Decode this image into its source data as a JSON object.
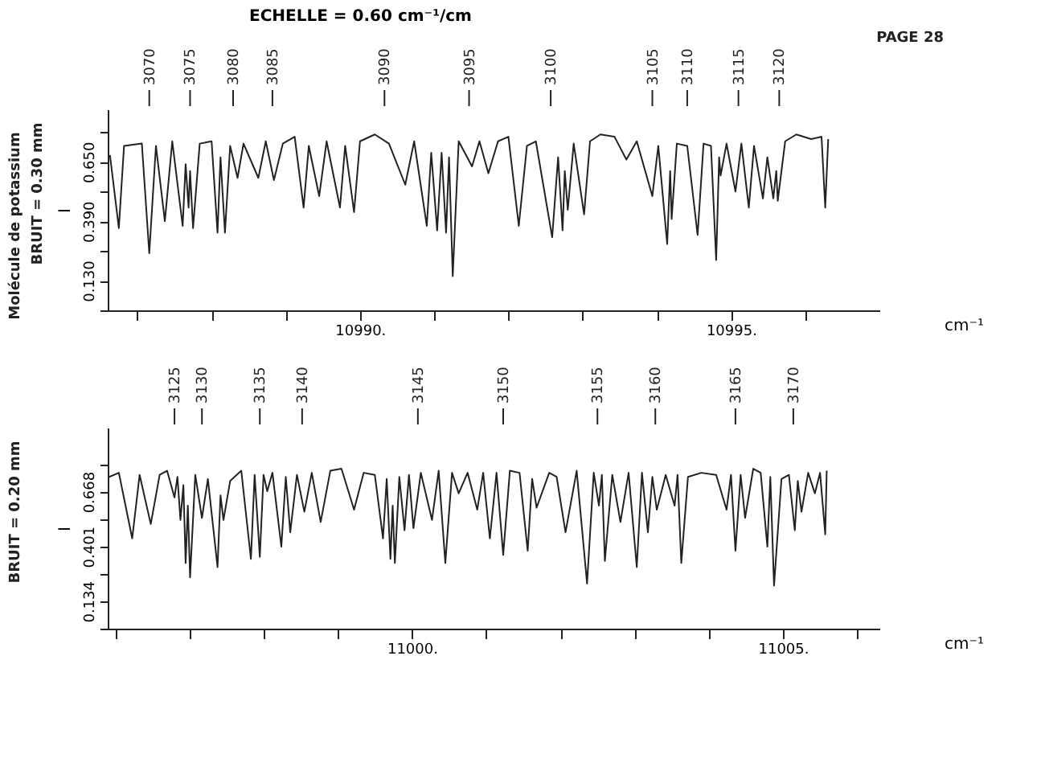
{
  "chart_data": [
    {
      "type": "line",
      "title": "ECHELLE = 0.60 cm⁻¹/cm",
      "annotations": [
        "PAGE 28",
        "Molécule de potassium",
        "BRUIT = 0.30 mm",
        {
          "text": "3070",
          "x": 10987.16
        },
        {
          "text": "3075",
          "x": 10987.71
        },
        {
          "text": "3080",
          "x": 10988.29
        },
        {
          "text": "3085",
          "x": 10988.82
        },
        {
          "text": "3090",
          "x": 10990.33
        },
        {
          "text": "3095",
          "x": 10991.47
        },
        {
          "text": "3100",
          "x": 10992.57
        },
        {
          "text": "3105",
          "x": 10993.94
        },
        {
          "text": "3110",
          "x": 10994.41
        },
        {
          "text": "3115",
          "x": 10995.1
        },
        {
          "text": "3120",
          "x": 10995.65
        }
      ],
      "xlabel": "cm⁻¹",
      "ylabel": "I",
      "marker": "none",
      "line_style": "solid",
      "xlim": [
        10986.6,
        10997.0
      ],
      "xticks": [
        {
          "value": 10987,
          "label": null
        },
        {
          "value": 10988,
          "label": null
        },
        {
          "value": 10989,
          "label": null
        },
        {
          "value": 10990,
          "label": "10990."
        },
        {
          "value": 10991,
          "label": null
        },
        {
          "value": 10992,
          "label": null
        },
        {
          "value": 10993,
          "label": null
        },
        {
          "value": 10994,
          "label": null
        },
        {
          "value": 10995,
          "label": "10995."
        },
        {
          "value": 10996,
          "label": null
        }
      ],
      "ylim": [
        0,
        0.88
      ],
      "yticks": [
        {
          "value": 0,
          "label": null
        },
        {
          "value": 0.13,
          "label": "0.130"
        },
        {
          "value": 0.26,
          "label": null
        },
        {
          "value": 0.39,
          "label": "0.390"
        },
        {
          "value": 0.52,
          "label": null
        },
        {
          "value": 0.65,
          "label": "0.650"
        },
        {
          "value": 0.78,
          "label": null
        }
      ],
      "series": [
        {
          "color": "#222222",
          "x": [
            10986.63,
            10986.75,
            10986.82,
            10987.06,
            10987.16,
            10987.25,
            10987.37,
            10987.47,
            10987.61,
            10987.65,
            10987.69,
            10987.71,
            10987.75,
            10987.84,
            10988.0,
            10988.08,
            10988.12,
            10988.18,
            10988.25,
            10988.35,
            10988.43,
            10988.63,
            10988.73,
            10988.84,
            10988.96,
            10989.12,
            10989.24,
            10989.31,
            10989.45,
            10989.55,
            10989.73,
            10989.8,
            10989.92,
            10990.0,
            10990.2,
            10990.39,
            10990.61,
            10990.73,
            10990.9,
            10990.96,
            10991.04,
            10991.1,
            10991.16,
            10991.2,
            10991.25,
            10991.33,
            10991.51,
            10991.61,
            10991.73,
            10991.86,
            10992.0,
            10992.14,
            10992.25,
            10992.37,
            10992.59,
            10992.67,
            10992.73,
            10992.76,
            10992.8,
            10992.88,
            10993.02,
            10993.1,
            10993.24,
            10993.43,
            10993.59,
            10993.73,
            10993.94,
            10994.02,
            10994.14,
            10994.18,
            10994.2,
            10994.27,
            10994.41,
            10994.55,
            10994.63,
            10994.73,
            10994.8,
            10994.84,
            10994.86,
            10994.94,
            10995.06,
            10995.14,
            10995.24,
            10995.31,
            10995.43,
            10995.49,
            10995.57,
            10995.61,
            10995.63,
            10995.73,
            10995.88,
            10996.08,
            10996.22,
            10996.27,
            10996.31
          ],
          "values": [
            0.68,
            0.36,
            0.72,
            0.73,
            0.25,
            0.72,
            0.39,
            0.74,
            0.37,
            0.64,
            0.45,
            0.61,
            0.36,
            0.73,
            0.74,
            0.34,
            0.67,
            0.34,
            0.72,
            0.58,
            0.73,
            0.58,
            0.74,
            0.57,
            0.73,
            0.76,
            0.45,
            0.72,
            0.5,
            0.74,
            0.45,
            0.72,
            0.43,
            0.74,
            0.77,
            0.73,
            0.55,
            0.74,
            0.37,
            0.69,
            0.35,
            0.69,
            0.34,
            0.67,
            0.15,
            0.74,
            0.63,
            0.74,
            0.6,
            0.74,
            0.76,
            0.37,
            0.72,
            0.74,
            0.32,
            0.67,
            0.35,
            0.61,
            0.44,
            0.73,
            0.42,
            0.74,
            0.77,
            0.76,
            0.66,
            0.74,
            0.5,
            0.72,
            0.29,
            0.61,
            0.4,
            0.73,
            0.72,
            0.33,
            0.73,
            0.72,
            0.22,
            0.67,
            0.59,
            0.73,
            0.52,
            0.73,
            0.45,
            0.72,
            0.49,
            0.67,
            0.49,
            0.61,
            0.48,
            0.74,
            0.77,
            0.75,
            0.76,
            0.45,
            0.75
          ]
        }
      ]
    },
    {
      "type": "line",
      "annotations": [
        "BRUIT = 0.20 mm",
        {
          "text": "3125",
          "x": 10996.8
        },
        {
          "text": "3130",
          "x": 10997.17
        },
        {
          "text": "3135",
          "x": 10997.95
        },
        {
          "text": "3140",
          "x": 10998.52
        },
        {
          "text": "3145",
          "x": 11000.08
        },
        {
          "text": "3150",
          "x": 11001.23
        },
        {
          "text": "3155",
          "x": 11002.5
        },
        {
          "text": "3160",
          "x": 11003.28
        },
        {
          "text": "3165",
          "x": 11004.36
        },
        {
          "text": "3170",
          "x": 11005.14
        }
      ],
      "xlabel": "cm⁻¹",
      "ylabel": "I",
      "marker": "none",
      "line_style": "solid",
      "xlim": [
        10995.9,
        11006.3
      ],
      "xticks": [
        {
          "value": 10996,
          "label": null
        },
        {
          "value": 10997,
          "label": null
        },
        {
          "value": 10998,
          "label": null
        },
        {
          "value": 10999,
          "label": null
        },
        {
          "value": 11000,
          "label": "11000."
        },
        {
          "value": 11001,
          "label": null
        },
        {
          "value": 11002,
          "label": null
        },
        {
          "value": 11003,
          "label": null
        },
        {
          "value": 11004,
          "label": null
        },
        {
          "value": 11005,
          "label": "11005."
        },
        {
          "value": 11006,
          "label": null
        }
      ],
      "ylim": [
        0,
        0.98
      ],
      "yticks": [
        {
          "value": 0,
          "label": null
        },
        {
          "value": 0.134,
          "label": "0.134"
        },
        {
          "value": 0.267,
          "label": null
        },
        {
          "value": 0.401,
          "label": "0.401"
        },
        {
          "value": 0.534,
          "label": null
        },
        {
          "value": 0.668,
          "label": "0.668"
        },
        {
          "value": 0.801,
          "label": null
        }
      ],
      "series": [
        {
          "color": "#222222",
          "x": [
            10995.92,
            10996.05,
            10996.23,
            10996.33,
            10996.48,
            10996.6,
            10996.7,
            10996.8,
            10996.84,
            10996.88,
            10996.92,
            10996.95,
            10996.98,
            10997.01,
            10997.08,
            10997.17,
            10997.25,
            10997.38,
            10997.42,
            10997.46,
            10997.55,
            10997.7,
            10997.83,
            10997.88,
            10997.95,
            10998.0,
            10998.05,
            10998.12,
            10998.24,
            10998.3,
            10998.36,
            10998.45,
            10998.55,
            10998.65,
            10998.77,
            10998.9,
            10999.05,
            10999.22,
            10999.35,
            10999.5,
            10999.61,
            10999.66,
            10999.71,
            10999.74,
            10999.77,
            10999.83,
            10999.9,
            10999.96,
            11000.02,
            11000.12,
            11000.27,
            11000.36,
            11000.45,
            11000.54,
            11000.63,
            11000.75,
            11000.88,
            11000.96,
            11001.05,
            11001.14,
            11001.23,
            11001.32,
            11001.45,
            11001.56,
            11001.62,
            11001.68,
            11001.85,
            11001.95,
            11002.07,
            11002.22,
            11002.36,
            11002.45,
            11002.52,
            11002.56,
            11002.6,
            11002.7,
            11002.81,
            11002.92,
            11003.03,
            11003.1,
            11003.18,
            11003.24,
            11003.3,
            11003.42,
            11003.54,
            11003.58,
            11003.63,
            11003.72,
            11003.9,
            11004.1,
            11004.24,
            11004.3,
            11004.36,
            11004.43,
            11004.49,
            11004.6,
            11004.7,
            11004.79,
            11004.83,
            11004.88,
            11004.98,
            11005.08,
            11005.16,
            11005.2,
            11005.25,
            11005.34,
            11005.43,
            11005.5,
            11005.57,
            11005.59
          ],
          "values": [
            0.74,
            0.76,
            0.44,
            0.75,
            0.51,
            0.75,
            0.77,
            0.64,
            0.74,
            0.53,
            0.7,
            0.32,
            0.6,
            0.25,
            0.75,
            0.54,
            0.73,
            0.3,
            0.65,
            0.53,
            0.72,
            0.77,
            0.34,
            0.75,
            0.35,
            0.75,
            0.67,
            0.76,
            0.4,
            0.74,
            0.47,
            0.75,
            0.57,
            0.76,
            0.52,
            0.77,
            0.78,
            0.58,
            0.76,
            0.75,
            0.44,
            0.73,
            0.34,
            0.6,
            0.32,
            0.74,
            0.48,
            0.75,
            0.49,
            0.76,
            0.53,
            0.77,
            0.32,
            0.76,
            0.66,
            0.76,
            0.58,
            0.76,
            0.44,
            0.76,
            0.36,
            0.77,
            0.76,
            0.38,
            0.73,
            0.59,
            0.76,
            0.74,
            0.47,
            0.77,
            0.22,
            0.76,
            0.6,
            0.75,
            0.33,
            0.75,
            0.52,
            0.76,
            0.3,
            0.76,
            0.47,
            0.74,
            0.58,
            0.75,
            0.6,
            0.75,
            0.32,
            0.74,
            0.76,
            0.75,
            0.58,
            0.75,
            0.38,
            0.75,
            0.54,
            0.78,
            0.76,
            0.4,
            0.74,
            0.21,
            0.73,
            0.75,
            0.48,
            0.72,
            0.57,
            0.76,
            0.66,
            0.76,
            0.46,
            0.77
          ]
        }
      ]
    }
  ]
}
